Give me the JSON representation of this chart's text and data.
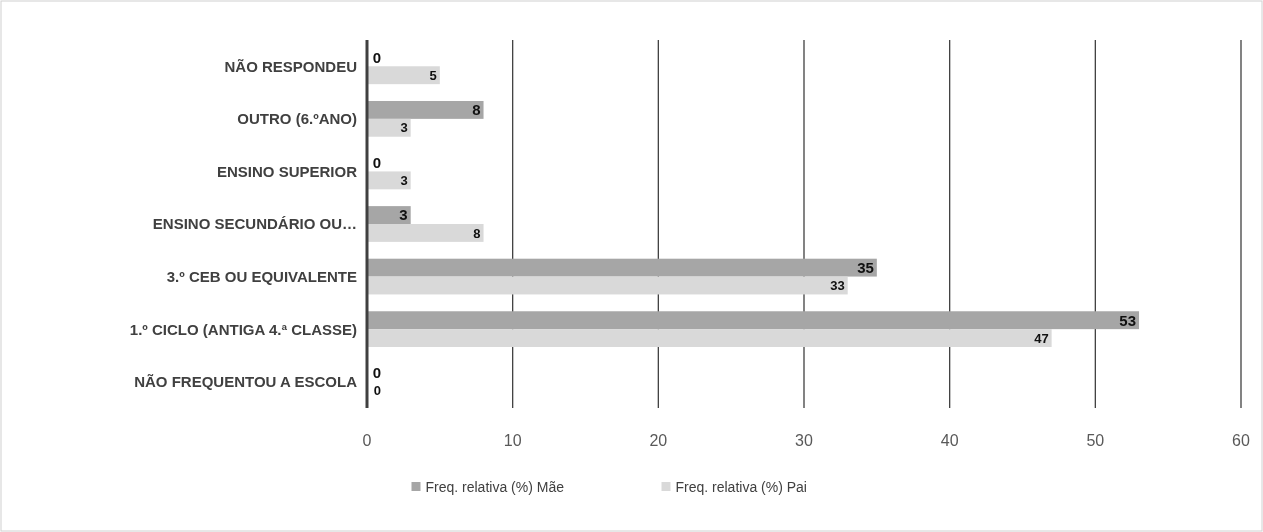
{
  "chart_data": {
    "type": "bar",
    "orientation": "horizontal",
    "categories": [
      "NÃO RESPONDEU",
      "OUTRO (6.ºANO)",
      "ENSINO SUPERIOR",
      "ENSINO SECUNDÁRIO OU…",
      "3.º CEB OU EQUIVALENTE",
      "1.º CICLO (ANTIGA 4.ª CLASSE)",
      "NÃO FREQUENTOU A ESCOLA"
    ],
    "series": [
      {
        "name": "Freq. relativa (%) Mãe",
        "color": "#a6a6a6",
        "values": [
          0,
          8,
          0,
          3,
          35,
          53,
          0
        ]
      },
      {
        "name": "Freq. relativa (%) Pai",
        "color": "#d9d9d9",
        "values": [
          5,
          3,
          3,
          8,
          33,
          47,
          0
        ]
      }
    ],
    "xlim": [
      0,
      60
    ],
    "xticks": [
      0,
      10,
      20,
      30,
      40,
      50,
      60
    ],
    "grid": "x",
    "legend": "bottom",
    "data_labels": true
  }
}
